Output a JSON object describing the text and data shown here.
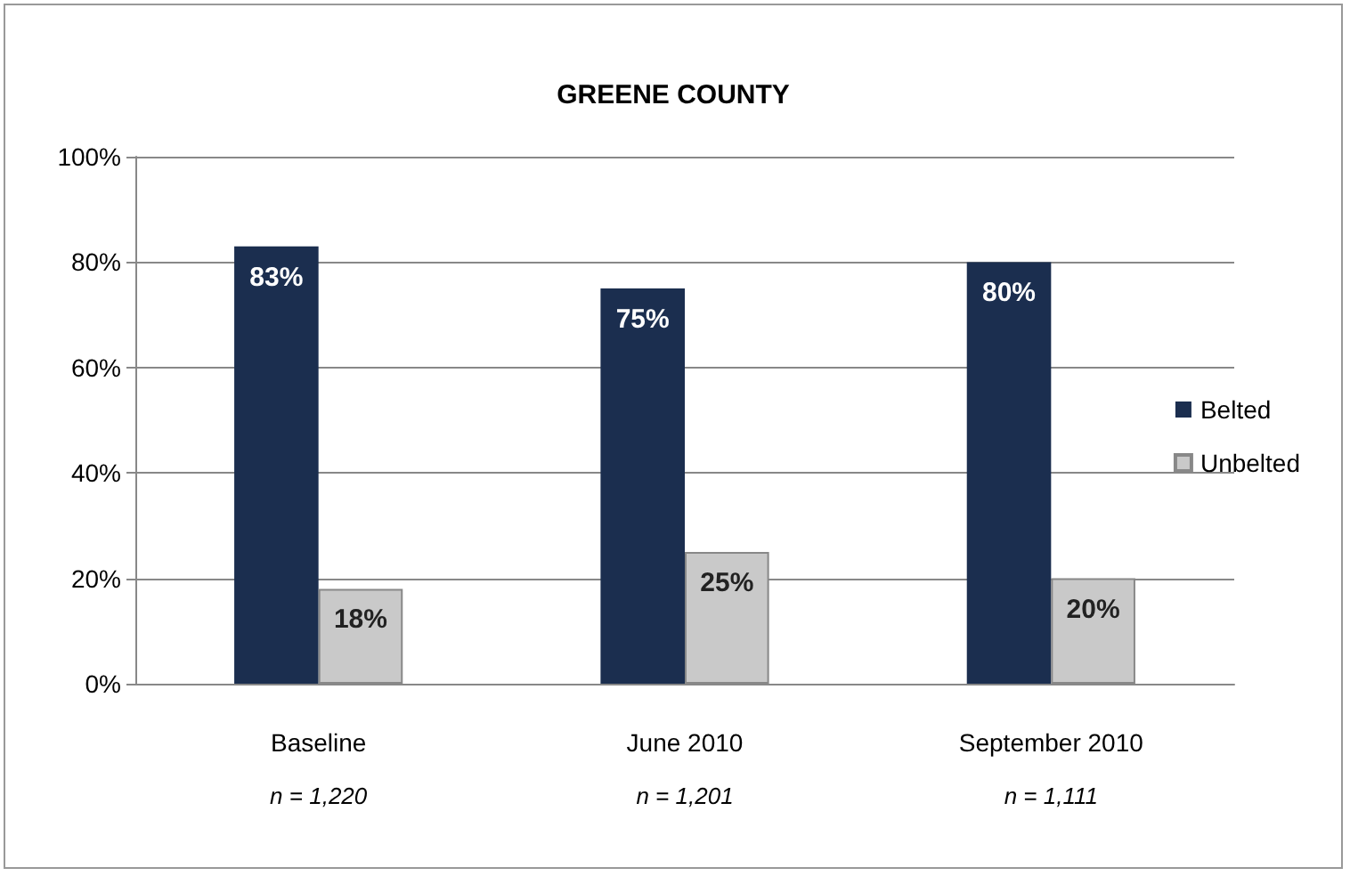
{
  "chart_data": {
    "type": "bar",
    "title": "GREENE COUNTY",
    "categories": [
      "Baseline",
      "June 2010",
      "September 2010"
    ],
    "series": [
      {
        "name": "Belted",
        "color": "#1b2e4f",
        "values": [
          83,
          75,
          80
        ]
      },
      {
        "name": "Unbelted",
        "color": "#c9c9c9",
        "values": [
          18,
          25,
          20
        ]
      }
    ],
    "ylim": [
      0,
      100
    ],
    "yticks": [
      {
        "value": 0,
        "label": "0%"
      },
      {
        "value": 20,
        "label": "20%"
      },
      {
        "value": 40,
        "label": "40%"
      },
      {
        "value": 60,
        "label": "60%"
      },
      {
        "value": 80,
        "label": "80%"
      },
      {
        "value": 100,
        "label": "100%"
      }
    ],
    "value_labels": [
      [
        "83%",
        "75%",
        "80%"
      ],
      [
        "18%",
        "25%",
        "20%"
      ]
    ],
    "annotations": [
      "n = 1,220",
      "n = 1,201",
      "n = 1,111"
    ],
    "grid": "y",
    "legend": "right"
  }
}
